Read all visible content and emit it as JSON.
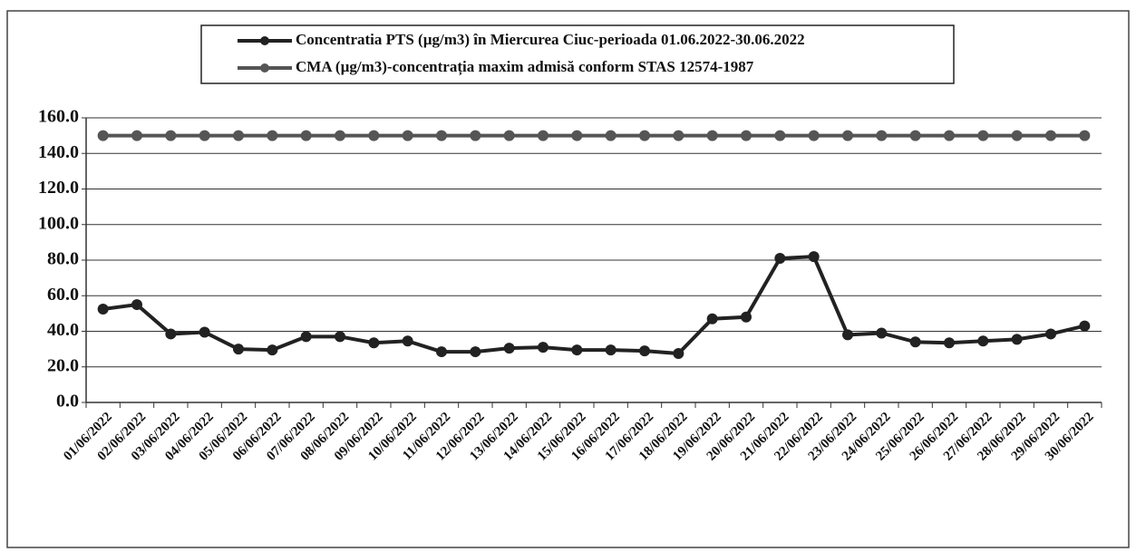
{
  "chart_data": {
    "type": "line",
    "categories": [
      "01/06/2022",
      "02/06/2022",
      "03/06/2022",
      "04/06/2022",
      "05/06/2022",
      "06/06/2022",
      "07/06/2022",
      "08/06/2022",
      "09/06/2022",
      "10/06/2022",
      "11/06/2022",
      "12/06/2022",
      "13/06/2022",
      "14/06/2022",
      "15/06/2022",
      "16/06/2022",
      "17/06/2022",
      "18/06/2022",
      "19/06/2022",
      "20/06/2022",
      "21/06/2022",
      "22/06/2022",
      "23/06/2022",
      "24/06/2022",
      "25/06/2022",
      "26/06/2022",
      "27/06/2022",
      "28/06/2022",
      "29/06/2022",
      "30/06/2022"
    ],
    "series": [
      {
        "name": "Concentratia PTS (µg/m3) în Miercurea Ciuc-perioada 01.06.2022-30.06.2022",
        "color": "#222222",
        "values": [
          52.5,
          55,
          38.5,
          39.5,
          30,
          29.5,
          37,
          37,
          33.5,
          34.5,
          28.5,
          28.5,
          30.5,
          31,
          29.5,
          29.5,
          29,
          27.5,
          47,
          48,
          81,
          82,
          38,
          39,
          34,
          33.5,
          34.5,
          35.5,
          38.5,
          43
        ]
      },
      {
        "name": "CMA (µg/m3)-concentrația maxim admisă conform STAS 12574-1987",
        "color": "#555555",
        "values": [
          150,
          150,
          150,
          150,
          150,
          150,
          150,
          150,
          150,
          150,
          150,
          150,
          150,
          150,
          150,
          150,
          150,
          150,
          150,
          150,
          150,
          150,
          150,
          150,
          150,
          150,
          150,
          150,
          150,
          150
        ]
      }
    ],
    "ylim": [
      0,
      160
    ],
    "yticks": [
      {
        "value": 0,
        "label": "0.0"
      },
      {
        "value": 20,
        "label": "20.0"
      },
      {
        "value": 40,
        "label": "40.0"
      },
      {
        "value": 60,
        "label": "60.0"
      },
      {
        "value": 80,
        "label": "80.0"
      },
      {
        "value": 100,
        "label": "100.0"
      },
      {
        "value": 120,
        "label": "120.0"
      },
      {
        "value": 140,
        "label": "140.0"
      },
      {
        "value": 160,
        "label": "160.0"
      }
    ],
    "grid": true
  }
}
